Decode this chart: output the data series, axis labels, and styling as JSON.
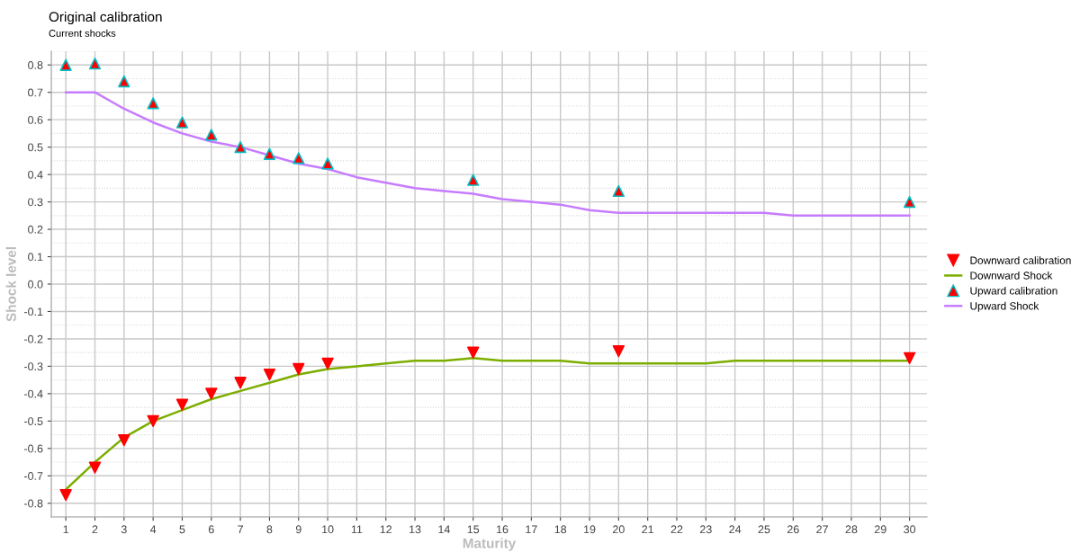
{
  "chart_data": {
    "type": "line",
    "title": "Original calibration",
    "subtitle": "Current shocks",
    "xlabel": "Maturity",
    "ylabel": "Shock level",
    "xlim": [
      0.5,
      30.6
    ],
    "xticks": [
      1,
      2,
      3,
      4,
      5,
      6,
      7,
      8,
      9,
      10,
      11,
      12,
      13,
      14,
      15,
      16,
      17,
      18,
      19,
      20,
      21,
      22,
      23,
      24,
      25,
      26,
      27,
      28,
      29,
      30
    ],
    "ylim": [
      -0.85,
      0.85
    ],
    "yticks": [
      {
        "value": -0.8,
        "label": "-0.8"
      },
      {
        "value": -0.7,
        "label": "-0.7"
      },
      {
        "value": -0.6,
        "label": "-0.6"
      },
      {
        "value": -0.5,
        "label": "-0.5"
      },
      {
        "value": -0.4,
        "label": "-0.4"
      },
      {
        "value": -0.3,
        "label": "-0.3"
      },
      {
        "value": -0.2,
        "label": "-0.2"
      },
      {
        "value": -0.1,
        "label": "-0.1"
      },
      {
        "value": 0,
        "label": "0.0"
      },
      {
        "value": 0.1,
        "label": "0.1"
      },
      {
        "value": 0.2,
        "label": "0.2"
      },
      {
        "value": 0.3,
        "label": "0.3"
      },
      {
        "value": 0.4,
        "label": "0.4"
      },
      {
        "value": 0.5,
        "label": "0.5"
      },
      {
        "value": 0.6,
        "label": "0.6"
      },
      {
        "value": 0.7,
        "label": "0.7"
      },
      {
        "value": 0.8,
        "label": "0.8"
      }
    ],
    "grid": true,
    "legend": "right",
    "series": [
      {
        "name": "Downward calibration",
        "type": "scatter",
        "marker": "triangle_down",
        "color": "#ff0000",
        "x": [
          1,
          2,
          3,
          4,
          5,
          6,
          7,
          8,
          9,
          10,
          15,
          20,
          30
        ],
        "values": [
          -0.77,
          -0.67,
          -0.57,
          -0.5,
          -0.44,
          -0.4,
          -0.36,
          -0.33,
          -0.31,
          -0.29,
          -0.25,
          -0.245,
          -0.27
        ]
      },
      {
        "name": "Downward Shock",
        "color": "#7cae00",
        "x": [
          1,
          2,
          3,
          4,
          5,
          6,
          7,
          8,
          9,
          10,
          11,
          12,
          13,
          14,
          15,
          16,
          17,
          18,
          19,
          20,
          21,
          22,
          23,
          24,
          25,
          26,
          27,
          28,
          29,
          30
        ],
        "values": [
          -0.75,
          -0.65,
          -0.56,
          -0.5,
          -0.46,
          -0.42,
          -0.39,
          -0.36,
          -0.33,
          -0.31,
          -0.3,
          -0.29,
          -0.28,
          -0.28,
          -0.27,
          -0.28,
          -0.28,
          -0.28,
          -0.29,
          -0.29,
          -0.29,
          -0.29,
          -0.29,
          -0.28,
          -0.28,
          -0.28,
          -0.28,
          -0.28,
          -0.28,
          -0.28
        ]
      },
      {
        "name": "Upward calibration",
        "type": "scatter",
        "marker": "triangle",
        "color": "#ff0000",
        "x": [
          1,
          2,
          3,
          4,
          5,
          6,
          7,
          8,
          9,
          10,
          15,
          20,
          30
        ],
        "values": [
          0.8,
          0.805,
          0.74,
          0.66,
          0.59,
          0.545,
          0.5,
          0.475,
          0.46,
          0.44,
          0.38,
          0.34,
          0.3
        ]
      },
      {
        "name": "Upward Shock",
        "color": "#c77cff",
        "x": [
          1,
          2,
          3,
          4,
          5,
          6,
          7,
          8,
          9,
          10,
          11,
          12,
          13,
          14,
          15,
          16,
          17,
          18,
          19,
          20,
          21,
          22,
          23,
          24,
          25,
          26,
          27,
          28,
          29,
          30
        ],
        "values": [
          0.7,
          0.7,
          0.64,
          0.59,
          0.55,
          0.52,
          0.5,
          0.47,
          0.44,
          0.42,
          0.39,
          0.37,
          0.35,
          0.34,
          0.33,
          0.31,
          0.3,
          0.29,
          0.27,
          0.26,
          0.26,
          0.26,
          0.26,
          0.26,
          0.26,
          0.25,
          0.25,
          0.25,
          0.25,
          0.25
        ]
      }
    ]
  }
}
